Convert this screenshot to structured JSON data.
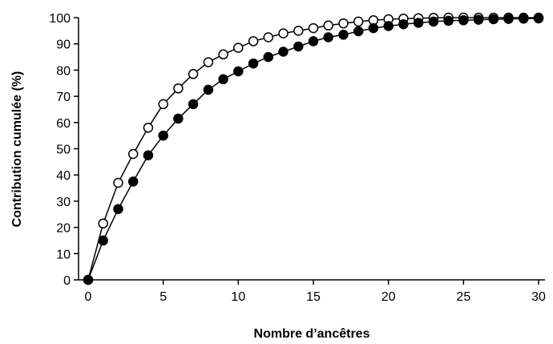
{
  "chart_data": {
    "type": "line",
    "title": "",
    "xlabel": "Nombre d’ancêtres",
    "ylabel": "Contribution cumulée (%)",
    "xlim": [
      0,
      30
    ],
    "ylim": [
      0,
      100
    ],
    "x_ticks": [
      0,
      5,
      10,
      15,
      20,
      25,
      30
    ],
    "y_ticks": [
      0,
      10,
      20,
      30,
      40,
      50,
      60,
      70,
      80,
      90,
      100
    ],
    "grid": false,
    "legend": "none",
    "series": [
      {
        "marker": "open-circle",
        "color": "#000000",
        "x": [
          0,
          1,
          2,
          3,
          4,
          5,
          6,
          7,
          8,
          9,
          10,
          11,
          12,
          13,
          14,
          15,
          16,
          17,
          18,
          19,
          20,
          21,
          22,
          23,
          24,
          25,
          26,
          27,
          28,
          29,
          30
        ],
        "y": [
          0,
          21.5,
          37,
          48,
          58,
          67,
          73,
          78.5,
          83,
          86,
          88.5,
          91,
          92.5,
          94,
          95,
          96,
          97,
          97.8,
          98.5,
          99,
          99.4,
          99.6,
          99.8,
          99.9,
          100,
          100,
          100,
          100,
          100,
          100,
          100
        ]
      },
      {
        "marker": "filled-circle",
        "color": "#000000",
        "x": [
          0,
          1,
          2,
          3,
          4,
          5,
          6,
          7,
          8,
          9,
          10,
          11,
          12,
          13,
          14,
          15,
          16,
          17,
          18,
          19,
          20,
          21,
          22,
          23,
          24,
          25,
          26,
          27,
          28,
          29,
          30
        ],
        "y": [
          0,
          15,
          27,
          37.5,
          47.5,
          55,
          61.5,
          67,
          72.5,
          76.5,
          79.5,
          82.5,
          85,
          87,
          89,
          91,
          92.5,
          93.5,
          94.8,
          96,
          96.8,
          97.5,
          98,
          98.5,
          98.8,
          99,
          99.2,
          99.4,
          99.5,
          99.6,
          99.7
        ]
      }
    ]
  }
}
